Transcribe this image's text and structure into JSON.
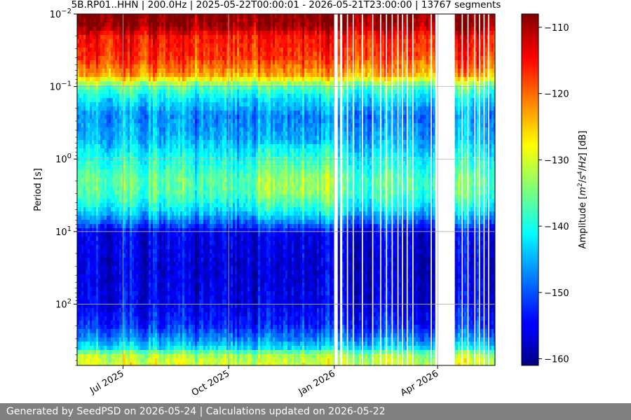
{
  "chart_data": {
    "type": "heatmap",
    "title": "5B.RP01..HHN | 200.0Hz | 2025-05-22T00:00:01 - 2026-05-21T23:00:00 | 13767 segments",
    "xlabel": "",
    "ylabel": "Period [s]",
    "x_axis": {
      "type": "date",
      "range": [
        "2025-05-22",
        "2026-05-21"
      ],
      "ticks": [
        {
          "value": "2025-07-01",
          "label": "Jul 2025"
        },
        {
          "value": "2025-10-01",
          "label": "Oct 2025"
        },
        {
          "value": "2026-01-01",
          "label": "Jan 2026"
        },
        {
          "value": "2026-04-01",
          "label": "Apr 2026"
        }
      ]
    },
    "y_axis": {
      "scale": "log",
      "inverted": true,
      "range": [
        0.01,
        700
      ],
      "ticks": [
        {
          "value": 0.01,
          "base": "10",
          "exp": "−2"
        },
        {
          "value": 0.1,
          "base": "10",
          "exp": "−1"
        },
        {
          "value": 1,
          "base": "10",
          "exp": "0"
        },
        {
          "value": 10,
          "base": "10",
          "exp": "1"
        },
        {
          "value": 100,
          "base": "10",
          "exp": "2"
        }
      ]
    },
    "colorbar": {
      "label_parts": [
        "Amplitude [",
        "m",
        "2",
        "/",
        "s",
        "4",
        "/",
        "Hz",
        "] [dB]"
      ],
      "colormap": "jet",
      "range": [
        -161,
        -108
      ],
      "ticks": [
        -110,
        -120,
        -130,
        -140,
        -150,
        -160
      ],
      "tick_labels": [
        "−110",
        "−120",
        "−130",
        "−140",
        "−150",
        "−160"
      ]
    },
    "grid": true,
    "amplitude_profile": [
      {
        "period": 0.01,
        "db": -108
      },
      {
        "period": 0.015,
        "db": -109
      },
      {
        "period": 0.02,
        "db": -115
      },
      {
        "period": 0.04,
        "db": -117
      },
      {
        "period": 0.07,
        "db": -123
      },
      {
        "period": 0.1,
        "db": -136
      },
      {
        "period": 0.15,
        "db": -142
      },
      {
        "period": 0.25,
        "db": -147
      },
      {
        "period": 0.5,
        "db": -145
      },
      {
        "period": 1,
        "db": -140
      },
      {
        "period": 2,
        "db": -136
      },
      {
        "period": 3,
        "db": -137
      },
      {
        "period": 5,
        "db": -142
      },
      {
        "period": 8,
        "db": -150
      },
      {
        "period": 10,
        "db": -155
      },
      {
        "period": 30,
        "db": -156
      },
      {
        "period": 100,
        "db": -155
      },
      {
        "period": 200,
        "db": -152
      },
      {
        "period": 300,
        "db": -147
      },
      {
        "period": 400,
        "db": -142
      },
      {
        "period": 500,
        "db": -132
      },
      {
        "period": 700,
        "db": -130
      }
    ],
    "data_gaps": [
      [
        "2026-01-01",
        "2026-01-04"
      ],
      [
        "2026-01-06",
        "2026-01-08"
      ],
      [
        "2026-01-12",
        "2026-01-13"
      ],
      [
        "2026-01-17",
        "2026-01-18"
      ],
      [
        "2026-01-25",
        "2026-01-26"
      ],
      [
        "2026-02-03",
        "2026-02-04"
      ],
      [
        "2026-02-10",
        "2026-02-11"
      ],
      [
        "2026-02-15",
        "2026-02-16"
      ],
      [
        "2026-02-20",
        "2026-02-21"
      ],
      [
        "2026-02-25",
        "2026-02-26"
      ],
      [
        "2026-03-01",
        "2026-03-02"
      ],
      [
        "2026-03-05",
        "2026-03-06"
      ],
      [
        "2026-03-10",
        "2026-03-11"
      ],
      [
        "2026-03-26",
        "2026-03-27"
      ],
      [
        "2026-03-30",
        "2026-04-02"
      ],
      [
        "2026-04-02",
        "2026-04-16"
      ],
      [
        "2026-04-22",
        "2026-04-23"
      ],
      [
        "2026-04-27",
        "2026-04-28"
      ],
      [
        "2026-05-03",
        "2026-05-04"
      ],
      [
        "2026-05-07",
        "2026-05-08"
      ],
      [
        "2026-05-11",
        "2026-05-12"
      ],
      [
        "2026-05-15",
        "2026-05-16"
      ]
    ]
  },
  "footer": {
    "text": "Generated by SeedPSD on 2026-05-24 | Calculations updated on 2026-05-22"
  }
}
